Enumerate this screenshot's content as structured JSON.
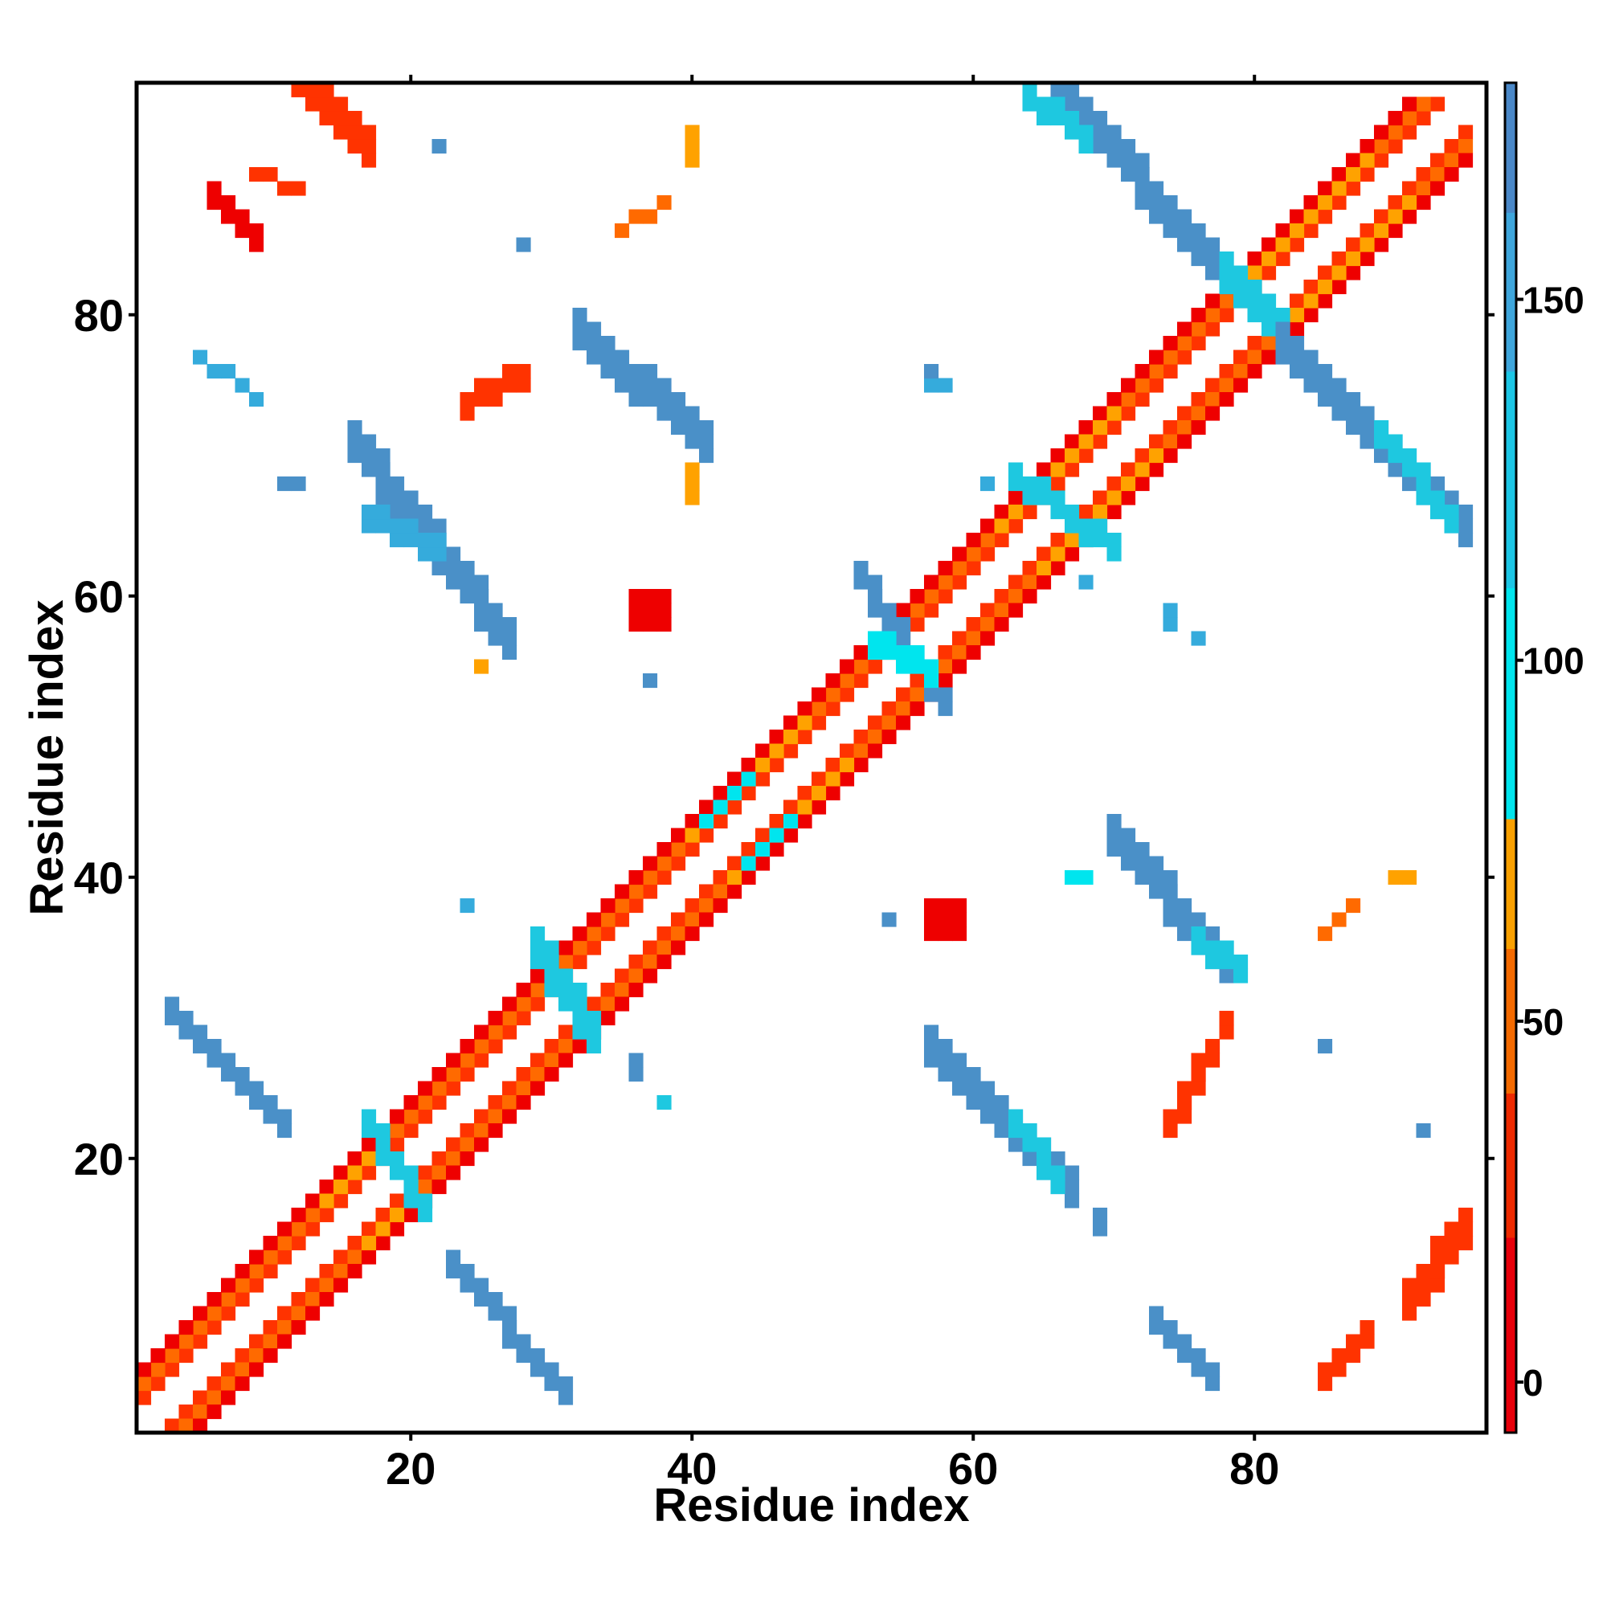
{
  "chart_data": {
    "type": "heatmap",
    "title": "",
    "xlabel": "Residue index",
    "ylabel": "Residue index",
    "xlim": [
      1,
      96
    ],
    "ylim": [
      1,
      96
    ],
    "x_ticks": [
      20,
      40,
      60,
      80
    ],
    "y_ticks": [
      20,
      40,
      60,
      80
    ],
    "colorbar": {
      "ticks": [
        0,
        50,
        100,
        150
      ],
      "range": [
        -7,
        180
      ],
      "stops": [
        {
          "value": -7,
          "color": "#e8000b"
        },
        {
          "value": 20,
          "color": "#ee2a00"
        },
        {
          "value": 40,
          "color": "#f46a00"
        },
        {
          "value": 60,
          "color": "#f9a000"
        },
        {
          "value": 78,
          "color": "#00e5ee"
        },
        {
          "value": 110,
          "color": "#1cc6e6"
        },
        {
          "value": 140,
          "color": "#3ea6dc"
        },
        {
          "value": 162,
          "color": "#4a88c8"
        },
        {
          "value": 180,
          "color": "#ffffff"
        }
      ]
    },
    "colors": {
      "red": "#ee0000",
      "red_orange": "#ff3300",
      "orange": "#ff6a00",
      "amber": "#ffa200",
      "cyan": "#00e5ee",
      "light_blue": "#1ec8e0",
      "sky": "#35abdc",
      "steel_blue": "#4a90c8"
    },
    "grid": false,
    "legend": "right colorbar",
    "segments": [
      {
        "x1": 1,
        "y1": 3,
        "x2": 93,
        "y2": 95,
        "color": "red_orange"
      },
      {
        "x1": 3,
        "y1": 1,
        "x2": 95,
        "y2": 93,
        "color": "red_orange"
      },
      {
        "x1": 1,
        "y1": 4,
        "x2": 92,
        "y2": 95,
        "color": "orange"
      },
      {
        "x1": 4,
        "y1": 1,
        "x2": 95,
        "y2": 92,
        "color": "orange"
      },
      {
        "x1": 1,
        "y1": 5,
        "x2": 91,
        "y2": 95,
        "color": "red"
      },
      {
        "x1": 5,
        "y1": 1,
        "x2": 95,
        "y2": 91,
        "color": "red"
      },
      {
        "x1": 40,
        "y1": 43,
        "x2": 48,
        "y2": 51,
        "color": "amber"
      },
      {
        "x1": 43,
        "y1": 40,
        "x2": 51,
        "y2": 48,
        "color": "amber"
      },
      {
        "x1": 62,
        "y1": 65,
        "x2": 70,
        "y2": 73,
        "color": "amber"
      },
      {
        "x1": 65,
        "y1": 62,
        "x2": 73,
        "y2": 70,
        "color": "amber"
      },
      {
        "x1": 80,
        "y1": 83,
        "x2": 88,
        "y2": 91,
        "color": "amber"
      },
      {
        "x1": 83,
        "y1": 80,
        "x2": 91,
        "y2": 88,
        "color": "amber"
      },
      {
        "x1": 14,
        "y1": 17,
        "x2": 17,
        "y2": 20,
        "color": "amber"
      },
      {
        "x1": 17,
        "y1": 14,
        "x2": 20,
        "y2": 17,
        "color": "amber"
      },
      {
        "x1": 41,
        "y1": 44,
        "x2": 44,
        "y2": 47,
        "color": "cyan"
      },
      {
        "x1": 44,
        "y1": 41,
        "x2": 47,
        "y2": 44,
        "color": "cyan"
      },
      {
        "x1": 3,
        "y1": 30,
        "x2": 11,
        "y2": 22,
        "color": "steel_blue",
        "w": 2
      },
      {
        "x1": 16,
        "y1": 70,
        "x2": 27,
        "y2": 56,
        "color": "steel_blue",
        "w": 3
      },
      {
        "x1": 17,
        "y1": 65,
        "x2": 22,
        "y2": 63,
        "color": "sky",
        "w": 2
      },
      {
        "x1": 23,
        "y1": 12,
        "x2": 31,
        "y2": 3,
        "color": "steel_blue",
        "w": 2
      },
      {
        "x1": 5,
        "y1": 77,
        "x2": 9,
        "y2": 74,
        "color": "sky",
        "w": 1
      },
      {
        "x1": 32,
        "y1": 78,
        "x2": 41,
        "y2": 70,
        "color": "steel_blue",
        "w": 3
      },
      {
        "x1": 29,
        "y1": 34,
        "x2": 33,
        "y2": 28,
        "color": "light_blue",
        "w": 3
      },
      {
        "x1": 17,
        "y1": 22,
        "x2": 21,
        "y2": 16,
        "color": "light_blue",
        "w": 2
      },
      {
        "x1": 52,
        "y1": 61,
        "x2": 58,
        "y2": 52,
        "color": "steel_blue",
        "w": 2
      },
      {
        "x1": 53,
        "y1": 56,
        "x2": 57,
        "y2": 54,
        "color": "cyan",
        "w": 2
      },
      {
        "x1": 66,
        "y1": 95,
        "x2": 78,
        "y2": 82,
        "color": "steel_blue",
        "w": 3
      },
      {
        "x1": 64,
        "y1": 95,
        "x2": 68,
        "y2": 92,
        "color": "light_blue",
        "w": 2
      },
      {
        "x1": 78,
        "y1": 82,
        "x2": 82,
        "y2": 78,
        "color": "light_blue",
        "w": 3
      },
      {
        "x1": 82,
        "y1": 77,
        "x2": 95,
        "y2": 64,
        "color": "steel_blue",
        "w": 3
      },
      {
        "x1": 89,
        "y1": 71,
        "x2": 94,
        "y2": 65,
        "color": "light_blue",
        "w": 2
      },
      {
        "x1": 63,
        "y1": 68,
        "x2": 70,
        "y2": 63,
        "color": "light_blue",
        "w": 2
      },
      {
        "x1": 70,
        "y1": 42,
        "x2": 78,
        "y2": 33,
        "color": "steel_blue",
        "w": 3
      },
      {
        "x1": 76,
        "y1": 35,
        "x2": 79,
        "y2": 33,
        "color": "light_blue",
        "w": 2
      },
      {
        "x1": 57,
        "y1": 27,
        "x2": 67,
        "y2": 17,
        "color": "steel_blue",
        "w": 3
      },
      {
        "x1": 63,
        "y1": 22,
        "x2": 66,
        "y2": 18,
        "color": "light_blue",
        "w": 2
      },
      {
        "x1": 73,
        "y1": 8,
        "x2": 77,
        "y2": 4,
        "color": "steel_blue",
        "w": 2
      },
      {
        "x1": 12,
        "y1": 96,
        "x2": 17,
        "y2": 91,
        "color": "red_orange",
        "w": 3
      },
      {
        "x1": 6,
        "y1": 88,
        "x2": 9,
        "y2": 85,
        "color": "red",
        "w": 2
      },
      {
        "x1": 9,
        "y1": 90,
        "x2": 12,
        "y2": 89,
        "color": "red_orange",
        "w": 1
      },
      {
        "x1": 24,
        "y1": 74,
        "x2": 28,
        "y2": 76,
        "color": "red_orange",
        "w": 2
      },
      {
        "x1": 35,
        "y1": 86,
        "x2": 38,
        "y2": 88,
        "color": "orange",
        "w": 1
      },
      {
        "x1": 91,
        "y1": 11,
        "x2": 95,
        "y2": 16,
        "color": "red_orange",
        "w": 3
      },
      {
        "x1": 85,
        "y1": 5,
        "x2": 88,
        "y2": 8,
        "color": "red_orange",
        "w": 2
      },
      {
        "x1": 74,
        "y1": 23,
        "x2": 77,
        "y2": 28,
        "color": "red_orange",
        "w": 2
      },
      {
        "x1": 85,
        "y1": 36,
        "x2": 87,
        "y2": 38,
        "color": "orange",
        "w": 1
      }
    ],
    "blocks": [
      {
        "x": 36,
        "y": 58,
        "w": 3,
        "h": 3,
        "color": "red"
      },
      {
        "x": 57,
        "y": 36,
        "w": 3,
        "h": 3,
        "color": "red"
      },
      {
        "x": 57,
        "y": 75,
        "w": 2,
        "h": 1,
        "color": "sky"
      },
      {
        "x": 57,
        "y": 76,
        "w": 1,
        "h": 1,
        "color": "steel_blue"
      },
      {
        "x": 74,
        "y": 58,
        "w": 1,
        "h": 2,
        "color": "sky"
      },
      {
        "x": 76,
        "y": 57,
        "w": 1,
        "h": 1,
        "color": "sky"
      },
      {
        "x": 40,
        "y": 91,
        "w": 1,
        "h": 3,
        "color": "amber"
      },
      {
        "x": 40,
        "y": 67,
        "w": 1,
        "h": 3,
        "color": "amber"
      },
      {
        "x": 78,
        "y": 29,
        "w": 1,
        "h": 2,
        "color": "red_orange"
      },
      {
        "x": 69,
        "y": 15,
        "w": 1,
        "h": 2,
        "color": "steel_blue"
      },
      {
        "x": 90,
        "y": 40,
        "w": 2,
        "h": 1,
        "color": "amber"
      },
      {
        "x": 85,
        "y": 28,
        "w": 1,
        "h": 1,
        "color": "steel_blue"
      },
      {
        "x": 92,
        "y": 22,
        "w": 1,
        "h": 1,
        "color": "steel_blue"
      },
      {
        "x": 22,
        "y": 92,
        "w": 1,
        "h": 1,
        "color": "steel_blue"
      },
      {
        "x": 28,
        "y": 85,
        "w": 1,
        "h": 1,
        "color": "steel_blue"
      },
      {
        "x": 37,
        "y": 54,
        "w": 1,
        "h": 1,
        "color": "steel_blue"
      },
      {
        "x": 54,
        "y": 37,
        "w": 1,
        "h": 1,
        "color": "steel_blue"
      },
      {
        "x": 61,
        "y": 68,
        "w": 1,
        "h": 1,
        "color": "sky"
      },
      {
        "x": 68,
        "y": 61,
        "w": 1,
        "h": 1,
        "color": "sky"
      },
      {
        "x": 24,
        "y": 38,
        "w": 1,
        "h": 1,
        "color": "sky"
      },
      {
        "x": 36,
        "y": 26,
        "w": 1,
        "h": 2,
        "color": "steel_blue"
      },
      {
        "x": 38,
        "y": 24,
        "w": 1,
        "h": 1,
        "color": "light_blue"
      },
      {
        "x": 25,
        "y": 55,
        "w": 1,
        "h": 1,
        "color": "amber"
      },
      {
        "x": 67,
        "y": 40,
        "w": 2,
        "h": 1,
        "color": "cyan"
      },
      {
        "x": 11,
        "y": 68,
        "w": 2,
        "h": 1,
        "color": "steel_blue"
      }
    ]
  }
}
